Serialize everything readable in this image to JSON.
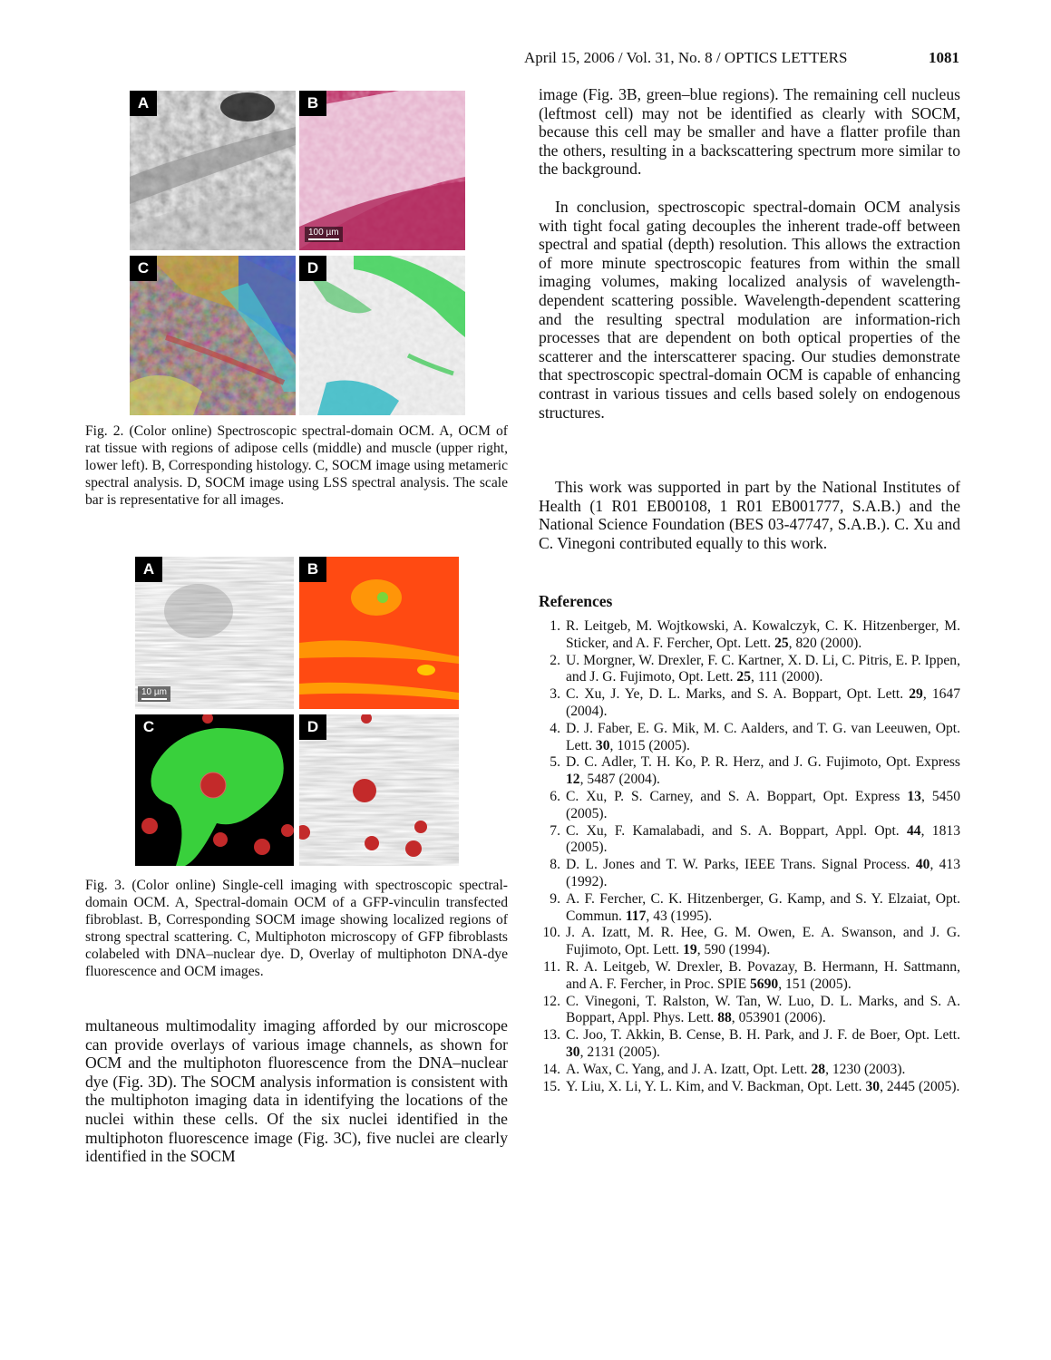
{
  "header": {
    "running": "April 15, 2006 / Vol. 31, No. 8 / OPTICS LETTERS",
    "page": "1081"
  },
  "figure2": {
    "panels": [
      "A",
      "B",
      "C",
      "D"
    ],
    "scale_bar": "100 µm",
    "caption": "Fig. 2. (Color online) Spectroscopic spectral-domain OCM. A, OCM of rat tissue with regions of adipose cells (middle) and muscle (upper right, lower left). B, Corresponding histology. C, SOCM image using metameric spectral analysis. D, SOCM image using LSS spectral analysis. The scale bar is representative for all images."
  },
  "figure3": {
    "panels": [
      "A",
      "B",
      "C",
      "D"
    ],
    "scale_bar": "10 µm",
    "caption": "Fig. 3. (Color online) Single-cell imaging with spectroscopic spectral-domain OCM. A, Spectral-domain OCM of a GFP-vinculin transfected fibroblast. B, Corresponding SOCM image showing localized regions of strong spectral scattering. C, Multiphoton microscopy of GFP fibroblasts colabeled with DNA–nuclear dye. D, Overlay of multiphoton DNA-dye fluorescence and OCM images."
  },
  "left_column": {
    "paragraph": "multaneous multimodality imaging afforded by our microscope can provide overlays of various image channels, as shown for OCM and the multiphoton fluorescence from the DNA–nuclear dye (Fig. 3D). The SOCM analysis information is consistent with the multiphoton imaging data in identifying the locations of the nuclei within these cells. Of the six nuclei identified in the multiphoton fluorescence image (Fig. 3C), five nuclei are clearly identified in the SOCM"
  },
  "right_column": {
    "paragraph1": "image (Fig. 3B, green–blue regions). The remaining cell nucleus (leftmost cell) may not be identified as clearly with SOCM, because this cell may be smaller and have a flatter profile than the others, resulting in a backscattering spectrum more similar to the background.",
    "paragraph2": "In conclusion, spectroscopic spectral-domain OCM analysis with tight focal gating decouples the inherent trade-off between spectral and spatial (depth) resolution. This allows the extraction of more minute spectroscopic features from within the small imaging volumes, making localized analysis of wavelength-dependent scattering possible. Wavelength-dependent scattering and the resulting spectral modulation are information-rich processes that are dependent on both optical properties of the scatterer and the interscatterer spacing. Our studies demonstrate that spectroscopic spectral-domain OCM is capable of enhancing contrast in various tissues and cells based solely on endogenous structures.",
    "acknowledgment": "This work was supported in part by the National Institutes of Health (1 R01 EB00108, 1 R01 EB001777, S.A.B.) and the National Science Foundation (BES 03-47747, S.A.B.). C. Xu and C. Vinegoni contributed equally to this work."
  },
  "references": {
    "heading": "References",
    "items": [
      {
        "num": "1.",
        "pre": "R. Leitgeb, M. Wojtkowski, A. Kowalczyk, C. K. Hitzenberger, M. Sticker, and A. F. Fercher, Opt. Lett. ",
        "vol": "25",
        "post": ", 820 (2000)."
      },
      {
        "num": "2.",
        "pre": "U. Morgner, W. Drexler, F. C. Kartner, X. D. Li, C. Pitris, E. P. Ippen, and J. G. Fujimoto, Opt. Lett. ",
        "vol": "25",
        "post": ", 111 (2000)."
      },
      {
        "num": "3.",
        "pre": "C. Xu, J. Ye, D. L. Marks, and S. A. Boppart, Opt. Lett. ",
        "vol": "29",
        "post": ", 1647 (2004)."
      },
      {
        "num": "4.",
        "pre": "D. J. Faber, E. G. Mik, M. C. Aalders, and T. G. van Leeuwen, Opt. Lett. ",
        "vol": "30",
        "post": ", 1015 (2005)."
      },
      {
        "num": "5.",
        "pre": "D. C. Adler, T. H. Ko, P. R. Herz, and J. G. Fujimoto, Opt. Express ",
        "vol": "12",
        "post": ", 5487 (2004)."
      },
      {
        "num": "6.",
        "pre": "C. Xu, P. S. Carney, and S. A. Boppart, Opt. Express ",
        "vol": "13",
        "post": ", 5450 (2005)."
      },
      {
        "num": "7.",
        "pre": "C. Xu, F. Kamalabadi, and S. A. Boppart, Appl. Opt. ",
        "vol": "44",
        "post": ", 1813 (2005)."
      },
      {
        "num": "8.",
        "pre": "D. L. Jones and T. W. Parks, IEEE Trans. Signal Process. ",
        "vol": "40",
        "post": ", 413 (1992)."
      },
      {
        "num": "9.",
        "pre": "A. F. Fercher, C. K. Hitzenberger, G. Kamp, and S. Y. Elzaiat, Opt. Commun. ",
        "vol": "117",
        "post": ", 43 (1995)."
      },
      {
        "num": "10.",
        "pre": "J. A. Izatt, M. R. Hee, G. M. Owen, E. A. Swanson, and J. G. Fujimoto, Opt. Lett. ",
        "vol": "19",
        "post": ", 590 (1994)."
      },
      {
        "num": "11.",
        "pre": "R. A. Leitgeb, W. Drexler, B. Povazay, B. Hermann, H. Sattmann, and A. F. Fercher, in Proc. SPIE ",
        "vol": "5690",
        "post": ", 151 (2005)."
      },
      {
        "num": "12.",
        "pre": "C. Vinegoni, T. Ralston, W. Tan, W. Luo, D. L. Marks, and S. A. Boppart, Appl. Phys. Lett. ",
        "vol": "88",
        "post": ", 053901 (2006)."
      },
      {
        "num": "13.",
        "pre": "C. Joo, T. Akkin, B. Cense, B. H. Park, and J. F. de Boer, Opt. Lett. ",
        "vol": "30",
        "post": ", 2131 (2005)."
      },
      {
        "num": "14.",
        "pre": "A. Wax, C. Yang, and J. A. Izatt, Opt. Lett. ",
        "vol": "28",
        "post": ", 1230 (2003)."
      },
      {
        "num": "15.",
        "pre": "Y. Liu, X. Li, Y. L. Kim, and V. Backman, Opt. Lett. ",
        "vol": "30",
        "post": ", 2445 (2005)."
      }
    ]
  }
}
